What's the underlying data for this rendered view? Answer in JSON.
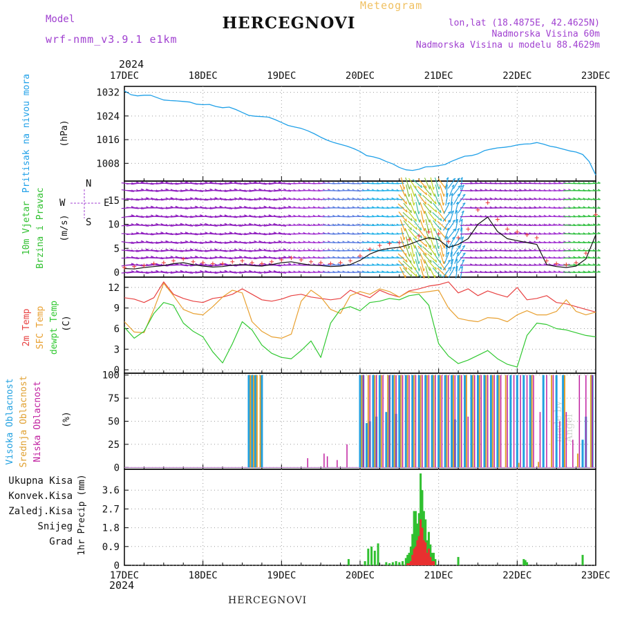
{
  "header": {
    "model_label": "Model",
    "model_name": "wrf-nmm_v3.9.1 e1km",
    "title": "HERCEGNOVI",
    "meteogram_label": "Meteogram",
    "lonlat": "lon,lat (18.4875E, 42.4625N)",
    "elevation": "Nadmorska Visina 60m",
    "model_elevation": "Nadmorska Visina u modelu 88.4629m",
    "year": "2024"
  },
  "footer": {
    "station": "HERCEGNOVI",
    "year": "2024",
    "credit": "made by Angel"
  },
  "colors": {
    "pressure": "#1fa0e8",
    "temp2m": "#e84040",
    "sfc": "#e8a030",
    "dewpt": "#30c830",
    "high_cloud": "#20a0e0",
    "mid_cloud": "#e0a030",
    "low_cloud": "#c020a0",
    "total_precip": "#30c030",
    "convective": "#e83030",
    "freezing": "#f07030",
    "snow": "#4040d0",
    "graupel": "#20c0c0",
    "wind_label": "#30c030",
    "wind_dir": "#a040d0"
  },
  "chart_data": [
    {
      "type": "line",
      "panel": "pressure",
      "ylabel_1": "Pritisak na nivou mora",
      "ylabel_2": "(hPa)",
      "ylim": [
        1002,
        1034
      ],
      "yticks": [
        "1032",
        "1024",
        "1016",
        "1008"
      ],
      "x": [
        0,
        2,
        4,
        6,
        8,
        10,
        12,
        14,
        16,
        18,
        20,
        22,
        24,
        26,
        28,
        30,
        32,
        34,
        36,
        38,
        40,
        42,
        44,
        46,
        48,
        50,
        52,
        54,
        56,
        58,
        60,
        62,
        64,
        66,
        68,
        70,
        72,
        74,
        76,
        78,
        80,
        82,
        84,
        86,
        88,
        90,
        92,
        94,
        96,
        98,
        100,
        102,
        104,
        106,
        108,
        110,
        112,
        114,
        116,
        118,
        120,
        122,
        124,
        126,
        128,
        130,
        132,
        134,
        136,
        138,
        140,
        142,
        144
      ],
      "series": [
        {
          "values": [
            1032.5,
            1031.2,
            1030.8,
            1031.0,
            1031.0,
            1030.2,
            1029.4,
            1029.2,
            1029.1,
            1028.9,
            1028.7,
            1028.0,
            1027.8,
            1027.9,
            1027.2,
            1026.8,
            1027.0,
            1026.2,
            1025.2,
            1024.2,
            1023.9,
            1023.8,
            1023.6,
            1022.8,
            1021.8,
            1020.8,
            1020.3,
            1019.8,
            1019.0,
            1018.0,
            1016.8,
            1015.8,
            1015.0,
            1014.4,
            1013.8,
            1013.0,
            1012.0,
            1010.6,
            1010.2,
            1009.6,
            1008.6,
            1007.8,
            1006.6,
            1005.8,
            1005.6,
            1006.0,
            1006.8,
            1006.9,
            1007.2,
            1007.6,
            1008.7,
            1009.6,
            1010.4,
            1010.6,
            1011.2,
            1012.3,
            1012.8,
            1013.2,
            1013.4,
            1013.7,
            1014.2,
            1014.5,
            1014.6,
            1015.0,
            1014.5,
            1013.8,
            1013.4,
            1012.8,
            1012.2,
            1011.8,
            1011.0,
            1008.6,
            1004.0
          ]
        }
      ]
    },
    {
      "type": "line",
      "panel": "wind",
      "ylabel_1": "10m Vjetar",
      "ylabel_2": "Brzina i Pravac",
      "ylabel_3": "(m/s)",
      "direction_legend": {
        "n": "N",
        "s": "S",
        "e": "E",
        "w": "W"
      },
      "ylim": [
        -1,
        19
      ],
      "yticks": [
        "15",
        "10",
        "5",
        "0"
      ],
      "x": [
        0,
        3,
        6,
        9,
        12,
        15,
        18,
        21,
        24,
        27,
        30,
        33,
        36,
        39,
        42,
        45,
        48,
        51,
        54,
        57,
        60,
        63,
        66,
        69,
        72,
        75,
        78,
        81,
        84,
        87,
        90,
        93,
        96,
        99,
        102,
        105,
        108,
        111,
        114,
        117,
        120,
        123,
        126,
        129,
        132,
        135,
        138,
        141,
        144
      ],
      "series": [
        {
          "name": "speed",
          "values": [
            0.8,
            0.7,
            1.0,
            1.2,
            1.4,
            1.8,
            2.0,
            1.6,
            1.3,
            1.1,
            1.2,
            1.5,
            1.6,
            1.4,
            1.3,
            1.6,
            2.0,
            2.2,
            1.8,
            1.5,
            1.4,
            1.2,
            1.3,
            1.6,
            2.5,
            3.8,
            4.6,
            5.0,
            5.2,
            5.8,
            6.6,
            7.2,
            6.8,
            5.2,
            5.8,
            7.0,
            10.0,
            11.5,
            8.5,
            7.0,
            6.6,
            6.2,
            5.8,
            1.6,
            1.2,
            1.0,
            1.3,
            2.8,
            7.8
          ]
        },
        {
          "name": "gust",
          "values": [
            1.0,
            1.2,
            1.4,
            1.8,
            2.0,
            2.4,
            2.8,
            2.2,
            2.0,
            1.8,
            1.8,
            2.2,
            2.4,
            2.0,
            1.8,
            2.2,
            2.6,
            3.0,
            2.6,
            2.2,
            2.0,
            1.8,
            2.0,
            2.4,
            3.4,
            4.8,
            5.6,
            6.0,
            6.2,
            6.8,
            7.6,
            8.4,
            8.0,
            6.4,
            7.2,
            9.0,
            13.0,
            14.5,
            11.0,
            9.0,
            8.4,
            7.8,
            7.2,
            2.4,
            1.8,
            1.6,
            2.0,
            4.0,
            12.0
          ]
        }
      ]
    },
    {
      "type": "line",
      "panel": "temperature",
      "ylabel_1": "2m Temp",
      "ylabel_2": "SFC Temp",
      "ylabel_3": "dewpt Temp",
      "ylabel_4": "(C)",
      "ylim": [
        -0.5,
        13.5
      ],
      "yticks": [
        "12",
        "9",
        "6",
        "3",
        "0"
      ],
      "x": [
        0,
        3,
        6,
        9,
        12,
        15,
        18,
        21,
        24,
        27,
        30,
        33,
        36,
        39,
        42,
        45,
        48,
        51,
        54,
        57,
        60,
        63,
        66,
        69,
        72,
        75,
        78,
        81,
        84,
        87,
        90,
        93,
        96,
        99,
        102,
        105,
        108,
        111,
        114,
        117,
        120,
        123,
        126,
        129,
        132,
        135,
        138,
        141,
        144
      ],
      "series": [
        {
          "name": "2m Temp",
          "values": [
            10.5,
            10.3,
            9.8,
            10.5,
            12.8,
            11.0,
            10.4,
            10.0,
            9.8,
            10.4,
            10.6,
            11.0,
            11.8,
            11.0,
            10.2,
            10.0,
            10.3,
            10.8,
            11.0,
            10.6,
            10.4,
            10.2,
            10.4,
            11.6,
            11.0,
            10.5,
            11.6,
            11.0,
            10.6,
            11.5,
            11.8,
            12.2,
            12.4,
            12.8,
            11.2,
            11.8,
            10.8,
            11.5,
            11.0,
            10.6,
            12.0,
            10.2,
            10.4,
            10.8,
            9.8,
            9.6,
            9.2,
            8.8,
            8.4
          ]
        },
        {
          "name": "SFC Temp",
          "values": [
            7.0,
            5.5,
            5.4,
            8.8,
            12.6,
            10.8,
            8.8,
            8.2,
            8.0,
            9.2,
            10.6,
            11.6,
            11.2,
            7.0,
            5.6,
            4.8,
            4.6,
            5.2,
            10.0,
            11.6,
            10.6,
            8.8,
            8.2,
            10.8,
            11.4,
            11.0,
            11.8,
            11.4,
            10.6,
            11.4,
            11.2,
            11.4,
            11.6,
            9.0,
            7.5,
            7.2,
            7.0,
            7.6,
            7.5,
            7.0,
            8.0,
            8.6,
            8.0,
            8.0,
            8.5,
            10.2,
            8.5,
            8.0,
            8.4
          ]
        },
        {
          "name": "dewpt Temp",
          "values": [
            6.2,
            4.6,
            5.6,
            8.2,
            9.8,
            9.4,
            6.8,
            5.6,
            4.8,
            2.6,
            1.0,
            3.8,
            7.0,
            5.8,
            3.6,
            2.4,
            1.8,
            1.6,
            2.8,
            4.2,
            1.8,
            6.8,
            8.8,
            9.2,
            8.6,
            9.8,
            10.0,
            10.4,
            10.2,
            10.8,
            11.0,
            9.4,
            3.8,
            2.0,
            0.9,
            1.4,
            2.1,
            2.8,
            1.6,
            0.8,
            0.4,
            5.0,
            6.8,
            6.6,
            6.0,
            5.8,
            5.4,
            5.0,
            4.8
          ]
        }
      ]
    },
    {
      "type": "bar",
      "panel": "cloud",
      "ylabel_1": "Visoka Oblacnost",
      "ylabel_2": "Srednja Oblacnost",
      "ylabel_3": "Niska Oblacnost",
      "ylabel_4": "(%)",
      "ylim": [
        -2,
        102
      ],
      "yticks": [
        "100",
        "75",
        "50",
        "25",
        "0"
      ],
      "high_hours": [
        38,
        39,
        40,
        42,
        72,
        73,
        74,
        75,
        76,
        77,
        78,
        80,
        81,
        82,
        83,
        84,
        86,
        88,
        90,
        92,
        94,
        96,
        98,
        100,
        101,
        102,
        104,
        106,
        108,
        110,
        112,
        114,
        118,
        120,
        122,
        124,
        128,
        132,
        134,
        140,
        141,
        143
      ],
      "high_values": [
        100,
        100,
        100,
        100,
        100,
        100,
        48,
        50,
        100,
        55,
        100,
        60,
        100,
        100,
        58,
        100,
        100,
        100,
        100,
        100,
        100,
        100,
        100,
        100,
        52,
        100,
        100,
        100,
        100,
        100,
        100,
        100,
        100,
        100,
        100,
        100,
        100,
        100,
        100,
        30,
        55,
        100
      ],
      "mid_hours": [
        38.5,
        39.5,
        40.5,
        41.5,
        72.5,
        74.5,
        76.5,
        78.5,
        80.5,
        82.5,
        84.5,
        86.5,
        88.5,
        90.5,
        92.5,
        94.5,
        96.5,
        98.5,
        100.5,
        102.5,
        104.5,
        106.5,
        108.5,
        110.5,
        112.5,
        114.5,
        116.5,
        120.5,
        124.5,
        126.5,
        130.5,
        134.5,
        138.5,
        142.5
      ],
      "mid_values": [
        100,
        100,
        100,
        100,
        100,
        100,
        100,
        100,
        100,
        100,
        100,
        100,
        100,
        100,
        100,
        100,
        100,
        100,
        100,
        100,
        100,
        100,
        100,
        100,
        100,
        100,
        100,
        5,
        100,
        6,
        100,
        100,
        15,
        100
      ],
      "low_hours": [
        56,
        61,
        62,
        65,
        68,
        73,
        75,
        77,
        79,
        81,
        83,
        85,
        87,
        89,
        91,
        93,
        95,
        97,
        99,
        101,
        103,
        105,
        107,
        109,
        111,
        113,
        115,
        117,
        119,
        121,
        123,
        125,
        127,
        129,
        131,
        133,
        135,
        137,
        139,
        141,
        143
      ],
      "low_values": [
        10,
        15,
        12,
        8,
        25,
        100,
        100,
        100,
        100,
        100,
        100,
        100,
        100,
        100,
        100,
        100,
        100,
        100,
        100,
        100,
        100,
        55,
        100,
        100,
        100,
        100,
        100,
        100,
        100,
        100,
        100,
        100,
        60,
        100,
        100,
        50,
        60,
        30,
        100,
        100,
        100
      ]
    },
    {
      "type": "bar",
      "panel": "precip",
      "legend": [
        "Ukupna Kisa",
        "Konvek.Kisa",
        "Zaledj.Kisa",
        "Snijeg",
        "Grad"
      ],
      "ylabel": "1hr Precip (mm)",
      "ylim": [
        0,
        4.6
      ],
      "yticks": [
        "3.6",
        "2.7",
        "1.8",
        "0.9",
        "0"
      ],
      "hours": [
        68.5,
        73.5,
        74.5,
        75.5,
        76.5,
        77.5,
        80,
        81,
        82,
        83,
        84,
        85,
        86,
        86.5,
        87,
        87.5,
        88,
        88.5,
        89,
        89.5,
        90,
        90.5,
        91,
        91.5,
        92,
        92.5,
        93,
        93.5,
        94,
        94.5,
        95,
        102,
        122,
        122.5,
        123,
        140
      ],
      "values": [
        0.3,
        0.2,
        0.8,
        0.9,
        0.7,
        1.05,
        0.15,
        0.1,
        0.15,
        0.2,
        0.15,
        0.2,
        0.35,
        0.5,
        0.6,
        0.9,
        1.5,
        2.6,
        2.6,
        2.0,
        2.5,
        4.4,
        3.6,
        2.6,
        2.2,
        1.2,
        1.6,
        1.0,
        0.6,
        0.6,
        0.3,
        0.4,
        0.3,
        0.25,
        0.15,
        0.5
      ],
      "convective_values": [
        0,
        0,
        0,
        0,
        0,
        0,
        0,
        0,
        0,
        0,
        0,
        0,
        0,
        0.1,
        0.1,
        0.2,
        0.5,
        0.8,
        0.9,
        1.2,
        1.4,
        2.2,
        1.8,
        1.2,
        1.1,
        0.6,
        0.8,
        0.4,
        0.2,
        0.2,
        0,
        0,
        0,
        0,
        0,
        0
      ]
    }
  ],
  "x_axis": {
    "xlim": [
      0,
      144
    ],
    "ticks": [
      "17DEC",
      "18DEC",
      "19DEC",
      "20DEC",
      "21DEC",
      "22DEC",
      "23DEC"
    ]
  }
}
